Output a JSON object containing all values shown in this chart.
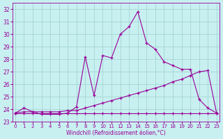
{
  "xlabel": "Windchill (Refroidissement éolien,°C)",
  "bg_color": "#c8f0f0",
  "line_color": "#990099",
  "grid_color": "#9ecece",
  "xlim": [
    -0.3,
    23.3
  ],
  "ylim": [
    23.0,
    32.5
  ],
  "xticks": [
    0,
    1,
    2,
    3,
    4,
    5,
    6,
    7,
    8,
    9,
    10,
    11,
    12,
    13,
    14,
    15,
    16,
    17,
    18,
    19,
    20,
    21,
    22,
    23
  ],
  "yticks": [
    23,
    24,
    25,
    26,
    27,
    28,
    29,
    30,
    31,
    32
  ],
  "line1_x": [
    0,
    1,
    2,
    3,
    4,
    5,
    6,
    7,
    8,
    9,
    10,
    11,
    12,
    13,
    14,
    15,
    16,
    17,
    18,
    19,
    20,
    21,
    22,
    23
  ],
  "line1_y": [
    23.7,
    24.1,
    23.8,
    23.6,
    23.6,
    23.6,
    23.7,
    24.2,
    28.2,
    25.1,
    28.3,
    28.1,
    30.0,
    30.6,
    31.8,
    29.3,
    28.8,
    27.8,
    27.5,
    27.2,
    27.2,
    24.8,
    24.1,
    23.7
  ],
  "line2_x": [
    0,
    1,
    2,
    3,
    4,
    5,
    6,
    7,
    8,
    9,
    10,
    11,
    12,
    13,
    14,
    15,
    16,
    17,
    18,
    19,
    20,
    21,
    22,
    23
  ],
  "line2_y": [
    23.7,
    23.8,
    23.8,
    23.8,
    23.8,
    23.8,
    23.9,
    23.9,
    24.1,
    24.3,
    24.5,
    24.7,
    24.9,
    25.1,
    25.3,
    25.5,
    25.7,
    25.9,
    26.2,
    26.4,
    26.7,
    27.0,
    27.1,
    23.7
  ],
  "line3_x": [
    0,
    1,
    2,
    3,
    4,
    5,
    6,
    7,
    8,
    9,
    10,
    11,
    12,
    13,
    14,
    15,
    16,
    17,
    18,
    19,
    20,
    21,
    22,
    23
  ],
  "line3_y": [
    23.7,
    23.7,
    23.7,
    23.7,
    23.7,
    23.7,
    23.7,
    23.7,
    23.7,
    23.7,
    23.7,
    23.7,
    23.7,
    23.7,
    23.7,
    23.7,
    23.7,
    23.7,
    23.7,
    23.7,
    23.7,
    23.7,
    23.7,
    23.7
  ]
}
